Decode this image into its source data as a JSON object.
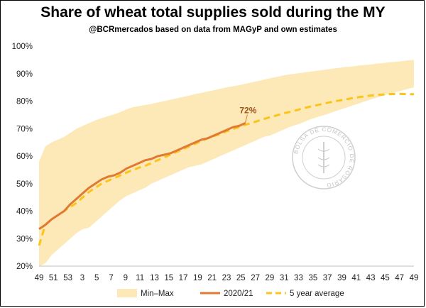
{
  "chart_data": {
    "type": "area",
    "title": "Share of wheat total supplies sold during the MY",
    "subtitle": "@BCRmercados based on data from MAGyP and own estimates",
    "x_ticks": [
      "49",
      "51",
      "53",
      "3",
      "5",
      "7",
      "9",
      "11",
      "13",
      "15",
      "17",
      "19",
      "21",
      "23",
      "25",
      "27",
      "29",
      "31",
      "33",
      "35",
      "37",
      "39",
      "41",
      "43",
      "45",
      "47",
      "49"
    ],
    "y_ticks": [
      "100%",
      "90%",
      "80%",
      "70%",
      "60%",
      "50%",
      "40%",
      "30%",
      "20%"
    ],
    "ylim": [
      20,
      100
    ],
    "series": [
      {
        "name": "Min–Max",
        "kind": "band",
        "color": "#fde9b8",
        "max": [
          58,
          63.5,
          65,
          66,
          67,
          68.5,
          70,
          71,
          72,
          73,
          73.8,
          74.5,
          75.2,
          76,
          77,
          77.8,
          78.2,
          78.6,
          79,
          79.5,
          80,
          80.5,
          81,
          81.5,
          82,
          82.6,
          83,
          83.5,
          84,
          84.5,
          85,
          85.4,
          85.8,
          86.3,
          86.8,
          87.3,
          87.8,
          88.3,
          88.8,
          89.3,
          89.7,
          90,
          90.3,
          90.6,
          90.9,
          91.2,
          91.5,
          91.8,
          92.1,
          92.4,
          92.6,
          92.9,
          93.1,
          93.3,
          93.6,
          93.8,
          94.1,
          94.3,
          94.5,
          94.8,
          95
        ],
        "min": [
          20,
          21,
          24,
          26,
          28,
          30,
          32,
          33.5,
          34,
          36,
          38,
          40,
          42,
          44,
          45.5,
          46.5,
          47.5,
          48.5,
          50,
          51,
          52,
          53,
          54,
          55,
          56,
          56.5,
          57,
          58,
          59,
          60,
          61,
          62,
          63,
          64,
          65,
          66,
          67,
          67.5,
          68.5,
          69.5,
          70.5,
          71.3,
          72,
          73,
          73.8,
          74.5,
          75.2,
          76,
          76.8,
          77.5,
          78.3,
          79,
          79.8,
          80.5,
          81.2,
          82,
          82.6,
          83.2,
          83.8,
          84.4,
          85
        ]
      },
      {
        "name": "2020/21",
        "kind": "line",
        "color": "#e07a33",
        "values": [
          33.5,
          35,
          37,
          38.5,
          40,
          42.5,
          44.5,
          46.5,
          48.5,
          50,
          51.5,
          52.5,
          53,
          54,
          55.5,
          56.5,
          57.5,
          58.5,
          59,
          60,
          60.5,
          61,
          62,
          63,
          64,
          65,
          66,
          66.5,
          67.5,
          68.5,
          69.5,
          70.5,
          71,
          72
        ]
      },
      {
        "name": "5 year average",
        "kind": "dashed",
        "color": "#fcc419",
        "values": [
          27.5,
          35,
          37,
          38.5,
          40,
          41.5,
          43,
          45,
          47,
          48.5,
          50,
          51,
          52,
          53,
          54,
          55,
          55.8,
          56.5,
          57.5,
          58.5,
          59.5,
          60.5,
          61.5,
          62.5,
          63.5,
          64.5,
          65.5,
          66.5,
          67.3,
          68,
          69,
          69.8,
          70.6,
          71.4,
          72,
          72.8,
          73.5,
          74.2,
          74.8,
          75.5,
          76,
          76.6,
          77.2,
          77.8,
          78.3,
          78.8,
          79.3,
          79.8,
          80.2,
          80.6,
          81,
          81.4,
          81.7,
          82,
          82.2,
          82.4,
          82.5,
          82.6,
          82.6,
          82.5,
          82.5
        ]
      }
    ],
    "annotation": "72%",
    "legend": [
      "Min–Max",
      "2020/21",
      "5 year average"
    ],
    "legend_position": "bottom",
    "grid": false
  },
  "watermark_text": "BOLSA DE COMERCIO DE ROSARIO",
  "colors": {
    "band": "#fde9b8",
    "line": "#e07a33",
    "dashed": "#fcc419",
    "annotation": "#a0521d"
  }
}
